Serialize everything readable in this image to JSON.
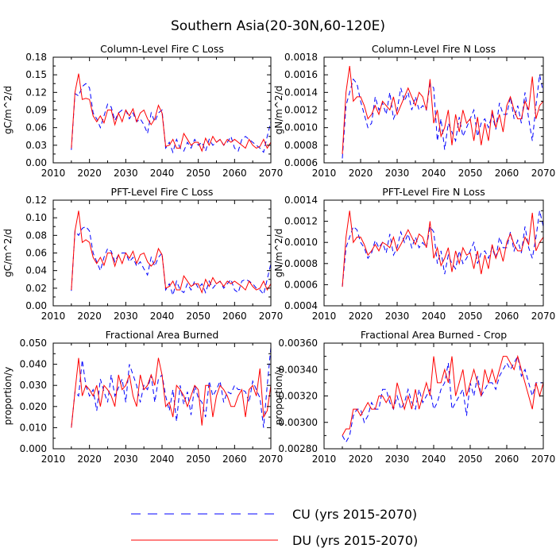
{
  "title": "Southern Asia(20-30N,60-120E)",
  "legend": [
    {
      "label": "CU (yrs 2015-2070)",
      "color": "#0000ff",
      "style": "dashed"
    },
    {
      "label": "DU (yrs 2015-2070)",
      "color": "#ff0000",
      "style": "solid"
    }
  ],
  "chart_data": [
    {
      "type": "line",
      "title": "Column-Level Fire C Loss",
      "ylabel": "gC/m^2/d",
      "xlim": [
        2010,
        2070
      ],
      "ylim": [
        0.0,
        0.18
      ],
      "xticks": [
        2010,
        2020,
        2030,
        2040,
        2050,
        2060,
        2070
      ],
      "xtick_labels": [
        "2010",
        "2020",
        "2030",
        "2040",
        "2050",
        "2060",
        "2070"
      ],
      "yticks": [
        0.0,
        0.03,
        0.06,
        0.09,
        0.12,
        0.15,
        0.18
      ],
      "ytick_labels": [
        "0.00",
        "0.03",
        "0.06",
        "0.09",
        "0.12",
        "0.15",
        "0.18"
      ],
      "x_start": 2015,
      "series": [
        {
          "name": "CU",
          "values": [
            0.022,
            0.118,
            0.114,
            0.13,
            0.135,
            0.128,
            0.085,
            0.075,
            0.06,
            0.08,
            0.1,
            0.095,
            0.072,
            0.085,
            0.09,
            0.09,
            0.075,
            0.085,
            0.07,
            0.075,
            0.065,
            0.05,
            0.085,
            0.07,
            0.085,
            0.09,
            0.025,
            0.035,
            0.018,
            0.04,
            0.025,
            0.02,
            0.035,
            0.025,
            0.04,
            0.03,
            0.035,
            0.02,
            0.04,
            0.03,
            0.035,
            0.04,
            0.03,
            0.035,
            0.045,
            0.025,
            0.02,
            0.04,
            0.045,
            0.04,
            0.035,
            0.03,
            0.025,
            0.018,
            0.045,
            0.07
          ]
        },
        {
          "name": "DU",
          "values": [
            0.025,
            0.12,
            0.152,
            0.108,
            0.11,
            0.108,
            0.08,
            0.07,
            0.08,
            0.068,
            0.09,
            0.09,
            0.065,
            0.085,
            0.07,
            0.09,
            0.08,
            0.092,
            0.07,
            0.085,
            0.09,
            0.075,
            0.065,
            0.075,
            0.098,
            0.085,
            0.028,
            0.03,
            0.04,
            0.025,
            0.025,
            0.05,
            0.04,
            0.03,
            0.035,
            0.035,
            0.02,
            0.042,
            0.03,
            0.045,
            0.035,
            0.04,
            0.03,
            0.04,
            0.035,
            0.04,
            0.035,
            0.03,
            0.025,
            0.04,
            0.03,
            0.025,
            0.028,
            0.04,
            0.025,
            0.035
          ]
        }
      ]
    },
    {
      "type": "line",
      "title": "Column-Level Fire N Loss",
      "ylabel": "gN/m^2/d",
      "xlim": [
        2010,
        2070
      ],
      "ylim": [
        0.0006,
        0.0018
      ],
      "xticks": [
        2010,
        2020,
        2030,
        2040,
        2050,
        2060,
        2070
      ],
      "xtick_labels": [
        "2010",
        "2020",
        "2030",
        "2040",
        "2050",
        "2060",
        "2070"
      ],
      "yticks": [
        0.0006,
        0.0008,
        0.001,
        0.0012,
        0.0014,
        0.0016,
        0.0018
      ],
      "ytick_labels": [
        "0.0006",
        "0.0008",
        "0.0010",
        "0.0012",
        "0.0014",
        "0.0016",
        "0.0018"
      ],
      "x_start": 2015,
      "series": [
        {
          "name": "CU",
          "values": [
            0.00065,
            0.00125,
            0.0014,
            0.00155,
            0.0015,
            0.0013,
            0.00115,
            0.001,
            0.00105,
            0.00135,
            0.0012,
            0.00128,
            0.00115,
            0.0014,
            0.0011,
            0.0012,
            0.00145,
            0.0013,
            0.0014,
            0.0012,
            0.00135,
            0.0012,
            0.00125,
            0.0012,
            0.0015,
            0.00145,
            0.00085,
            0.0011,
            0.00075,
            0.00105,
            0.00095,
            0.00085,
            0.00112,
            0.0009,
            0.001,
            0.0011,
            0.0012,
            0.0009,
            0.00105,
            0.0011,
            0.001,
            0.00115,
            0.00098,
            0.00128,
            0.00115,
            0.00115,
            0.00135,
            0.0011,
            0.00125,
            0.00105,
            0.0014,
            0.0011,
            0.00085,
            0.00125,
            0.0016,
            0.0014
          ]
        },
        {
          "name": "DU",
          "values": [
            0.0007,
            0.0014,
            0.0017,
            0.0013,
            0.00135,
            0.00135,
            0.00125,
            0.0011,
            0.00115,
            0.00125,
            0.00115,
            0.0013,
            0.00125,
            0.0012,
            0.00135,
            0.00115,
            0.00125,
            0.00135,
            0.00145,
            0.00135,
            0.00125,
            0.0014,
            0.00135,
            0.0012,
            0.00155,
            0.00105,
            0.0012,
            0.0009,
            0.001,
            0.0012,
            0.0008,
            0.00115,
            0.00095,
            0.0012,
            0.00105,
            0.0011,
            0.00085,
            0.00112,
            0.0008,
            0.00105,
            0.00085,
            0.0012,
            0.001,
            0.00115,
            0.00095,
            0.00125,
            0.00135,
            0.0012,
            0.0011,
            0.0011,
            0.0013,
            0.0012,
            0.00158,
            0.0011,
            0.00125,
            0.0013
          ]
        }
      ]
    },
    {
      "type": "line",
      "title": "PFT-Level Fire C Loss",
      "ylabel": "gC/m^2/d",
      "xlim": [
        2010,
        2070
      ],
      "ylim": [
        0.0,
        0.12
      ],
      "xticks": [
        2010,
        2020,
        2030,
        2040,
        2050,
        2060,
        2070
      ],
      "xtick_labels": [
        "2010",
        "2020",
        "2030",
        "2040",
        "2050",
        "2060",
        "2070"
      ],
      "yticks": [
        0.0,
        0.02,
        0.04,
        0.06,
        0.08,
        0.1,
        0.12
      ],
      "ytick_labels": [
        "0.00",
        "0.02",
        "0.04",
        "0.06",
        "0.08",
        "0.10",
        "0.12"
      ],
      "x_start": 2015,
      "series": [
        {
          "name": "CU",
          "values": [
            0.017,
            0.085,
            0.08,
            0.088,
            0.09,
            0.085,
            0.06,
            0.05,
            0.04,
            0.055,
            0.065,
            0.062,
            0.05,
            0.058,
            0.06,
            0.06,
            0.05,
            0.055,
            0.045,
            0.05,
            0.042,
            0.035,
            0.055,
            0.045,
            0.055,
            0.06,
            0.018,
            0.025,
            0.012,
            0.028,
            0.018,
            0.015,
            0.025,
            0.018,
            0.028,
            0.02,
            0.025,
            0.015,
            0.028,
            0.02,
            0.025,
            0.028,
            0.02,
            0.025,
            0.03,
            0.018,
            0.015,
            0.028,
            0.03,
            0.028,
            0.025,
            0.02,
            0.018,
            0.013,
            0.03,
            0.048
          ]
        },
        {
          "name": "DU",
          "values": [
            0.018,
            0.085,
            0.108,
            0.072,
            0.075,
            0.072,
            0.055,
            0.048,
            0.055,
            0.046,
            0.06,
            0.06,
            0.045,
            0.058,
            0.048,
            0.06,
            0.054,
            0.062,
            0.048,
            0.058,
            0.06,
            0.05,
            0.045,
            0.05,
            0.065,
            0.058,
            0.02,
            0.022,
            0.028,
            0.018,
            0.018,
            0.034,
            0.028,
            0.022,
            0.025,
            0.025,
            0.015,
            0.03,
            0.022,
            0.032,
            0.025,
            0.028,
            0.022,
            0.028,
            0.025,
            0.028,
            0.025,
            0.022,
            0.018,
            0.028,
            0.022,
            0.018,
            0.02,
            0.028,
            0.018,
            0.025
          ]
        }
      ]
    },
    {
      "type": "line",
      "title": "PFT-Level Fire N Loss",
      "ylabel": "gN/m^2/d",
      "xlim": [
        2010,
        2070
      ],
      "ylim": [
        0.0004,
        0.0014
      ],
      "xticks": [
        2010,
        2020,
        2030,
        2040,
        2050,
        2060,
        2070
      ],
      "xtick_labels": [
        "2010",
        "2020",
        "2030",
        "2040",
        "2050",
        "2060",
        "2070"
      ],
      "yticks": [
        0.0004,
        0.0006,
        0.0008,
        0.001,
        0.0012,
        0.0014
      ],
      "ytick_labels": [
        "0.0004",
        "0.0006",
        "0.0008",
        "0.0010",
        "0.0012",
        "0.0014"
      ],
      "x_start": 2015,
      "series": [
        {
          "name": "CU",
          "values": [
            0.00058,
            0.00095,
            0.00105,
            0.00115,
            0.00112,
            0.001,
            0.00095,
            0.00085,
            0.0009,
            0.00102,
            0.00095,
            0.001,
            0.0009,
            0.00108,
            0.00088,
            0.00095,
            0.0011,
            0.001,
            0.00108,
            0.00095,
            0.00105,
            0.00095,
            0.001,
            0.00095,
            0.00115,
            0.0011,
            0.0008,
            0.00092,
            0.0007,
            0.00088,
            0.0008,
            0.00075,
            0.00092,
            0.0008,
            0.00085,
            0.00092,
            0.001,
            0.0008,
            0.0009,
            0.00092,
            0.00085,
            0.00095,
            0.00085,
            0.00105,
            0.00095,
            0.00095,
            0.0011,
            0.00092,
            0.00102,
            0.0009,
            0.00115,
            0.00095,
            0.00085,
            0.00105,
            0.0013,
            0.00115
          ]
        },
        {
          "name": "DU",
          "values": [
            0.00058,
            0.00105,
            0.0013,
            0.001,
            0.00105,
            0.00105,
            0.00098,
            0.00088,
            0.00092,
            0.00098,
            0.00092,
            0.001,
            0.00098,
            0.00095,
            0.00105,
            0.00092,
            0.00098,
            0.00105,
            0.00112,
            0.00105,
            0.00098,
            0.00108,
            0.00105,
            0.00095,
            0.0012,
            0.00085,
            0.00095,
            0.00078,
            0.00085,
            0.00095,
            0.00072,
            0.00092,
            0.0008,
            0.00095,
            0.00088,
            0.0009,
            0.00075,
            0.00092,
            0.0007,
            0.00088,
            0.00075,
            0.00098,
            0.00085,
            0.00095,
            0.00082,
            0.001,
            0.00108,
            0.00098,
            0.00092,
            0.00092,
            0.00105,
            0.00098,
            0.00128,
            0.00092,
            0.001,
            0.00105
          ]
        }
      ]
    },
    {
      "type": "line",
      "title": "Fractional Area Burned",
      "ylabel": "proportion/y",
      "xlim": [
        2010,
        2070
      ],
      "ylim": [
        0.0,
        0.05
      ],
      "xticks": [
        2010,
        2020,
        2030,
        2040,
        2050,
        2060,
        2070
      ],
      "xtick_labels": [
        "2010",
        "2020",
        "2030",
        "2040",
        "2050",
        "2060",
        "2070"
      ],
      "yticks": [
        0.0,
        0.01,
        0.02,
        0.03,
        0.04,
        0.05
      ],
      "ytick_labels": [
        "0.000",
        "0.010",
        "0.020",
        "0.030",
        "0.040",
        "0.050"
      ],
      "x_start": 2015,
      "series": [
        {
          "name": "CU",
          "values": [
            0.01,
            0.027,
            0.025,
            0.042,
            0.03,
            0.025,
            0.028,
            0.018,
            0.033,
            0.027,
            0.022,
            0.035,
            0.025,
            0.029,
            0.033,
            0.022,
            0.04,
            0.035,
            0.03,
            0.022,
            0.03,
            0.028,
            0.035,
            0.022,
            0.033,
            0.035,
            0.025,
            0.018,
            0.028,
            0.013,
            0.03,
            0.021,
            0.027,
            0.016,
            0.03,
            0.024,
            0.022,
            0.015,
            0.032,
            0.025,
            0.028,
            0.032,
            0.022,
            0.027,
            0.026,
            0.03,
            0.028,
            0.028,
            0.027,
            0.022,
            0.032,
            0.028,
            0.024,
            0.01,
            0.03,
            0.048
          ]
        },
        {
          "name": "DU",
          "values": [
            0.01,
            0.027,
            0.043,
            0.025,
            0.03,
            0.028,
            0.025,
            0.03,
            0.02,
            0.03,
            0.028,
            0.025,
            0.02,
            0.035,
            0.028,
            0.03,
            0.035,
            0.025,
            0.02,
            0.035,
            0.028,
            0.03,
            0.035,
            0.03,
            0.043,
            0.035,
            0.02,
            0.022,
            0.015,
            0.03,
            0.028,
            0.025,
            0.02,
            0.025,
            0.03,
            0.028,
            0.011,
            0.03,
            0.03,
            0.015,
            0.025,
            0.03,
            0.028,
            0.025,
            0.02,
            0.02,
            0.025,
            0.028,
            0.015,
            0.028,
            0.03,
            0.025,
            0.038,
            0.015,
            0.018,
            0.03
          ]
        }
      ]
    },
    {
      "type": "line",
      "title": "Fractional Area Burned - Crop",
      "ylabel": "proportion/y",
      "xlim": [
        2010,
        2070
      ],
      "ylim": [
        0.0028,
        0.0036
      ],
      "xticks": [
        2010,
        2020,
        2030,
        2040,
        2050,
        2060,
        2070
      ],
      "xtick_labels": [
        "2010",
        "2020",
        "2030",
        "2040",
        "2050",
        "2060",
        "2070"
      ],
      "yticks": [
        0.0028,
        0.003,
        0.0032,
        0.0034,
        0.0036
      ],
      "ytick_labels": [
        "0.00280",
        "0.00300",
        "0.00320",
        "0.00340",
        "0.00360"
      ],
      "x_start": 2015,
      "series": [
        {
          "name": "CU",
          "values": [
            0.0029,
            0.00285,
            0.0029,
            0.00305,
            0.0031,
            0.0031,
            0.003,
            0.00305,
            0.00315,
            0.0031,
            0.0031,
            0.00325,
            0.00325,
            0.00315,
            0.0031,
            0.0032,
            0.0031,
            0.00315,
            0.00325,
            0.00315,
            0.0031,
            0.00325,
            0.00315,
            0.0032,
            0.00325,
            0.0031,
            0.00315,
            0.00325,
            0.0033,
            0.00345,
            0.0031,
            0.00315,
            0.0032,
            0.00325,
            0.00305,
            0.0033,
            0.0032,
            0.00335,
            0.0032,
            0.00325,
            0.0033,
            0.0033,
            0.00325,
            0.00335,
            0.0034,
            0.00345,
            0.0034,
            0.00345,
            0.0035,
            0.00335,
            0.0034,
            0.0033,
            0.0032,
            0.0033,
            0.0033,
            0.0033
          ]
        },
        {
          "name": "DU",
          "values": [
            0.0029,
            0.00295,
            0.00295,
            0.0031,
            0.0031,
            0.00305,
            0.0031,
            0.00315,
            0.0031,
            0.0031,
            0.0032,
            0.0032,
            0.00315,
            0.0032,
            0.0031,
            0.0033,
            0.0032,
            0.0031,
            0.0032,
            0.0031,
            0.00325,
            0.0031,
            0.0032,
            0.0033,
            0.0032,
            0.0035,
            0.0033,
            0.0033,
            0.0034,
            0.0033,
            0.0035,
            0.0032,
            0.0033,
            0.0034,
            0.0032,
            0.0033,
            0.0034,
            0.0033,
            0.0032,
            0.0034,
            0.0033,
            0.0034,
            0.0033,
            0.0034,
            0.0035,
            0.0035,
            0.00345,
            0.0034,
            0.0035,
            0.0034,
            0.0033,
            0.0032,
            0.0031,
            0.0033,
            0.0032,
            0.0033
          ]
        }
      ]
    }
  ]
}
